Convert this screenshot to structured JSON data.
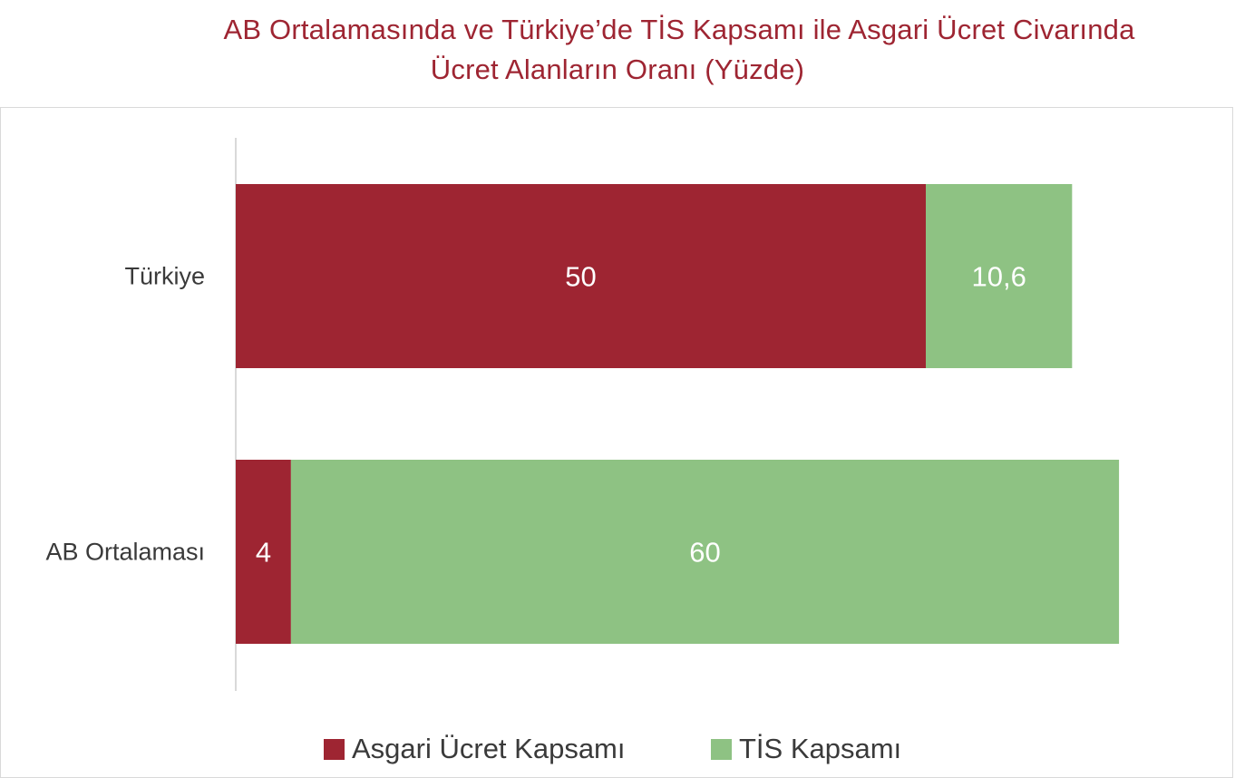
{
  "title_line1": "AB Ortalamasında ve Türkiye’de TİS Kapsamı ile Asgari Ücret Civarında",
  "title_line2": "Ücret Alanların Oranı (Yüzde)",
  "colors": {
    "title": "#9e2532",
    "asgari": "#9e2532",
    "tis": "#8ec283",
    "axis": "#d9d9d9",
    "label_inside": "#ffffff",
    "category_text": "#3a3a3a"
  },
  "chart_data": {
    "type": "bar",
    "orientation": "horizontal",
    "stacked": true,
    "categories": [
      "Türkiye",
      "AB Ortalaması"
    ],
    "series": [
      {
        "name": "Asgari Ücret Kapsamı",
        "values": [
          50,
          4
        ],
        "labels": [
          "50",
          "4"
        ]
      },
      {
        "name": "TİS Kapsamı",
        "values": [
          10.6,
          60
        ],
        "labels": [
          "10,6",
          "60"
        ]
      }
    ],
    "xlim": [
      0,
      66
    ],
    "grid": false,
    "legend": "bottom"
  }
}
